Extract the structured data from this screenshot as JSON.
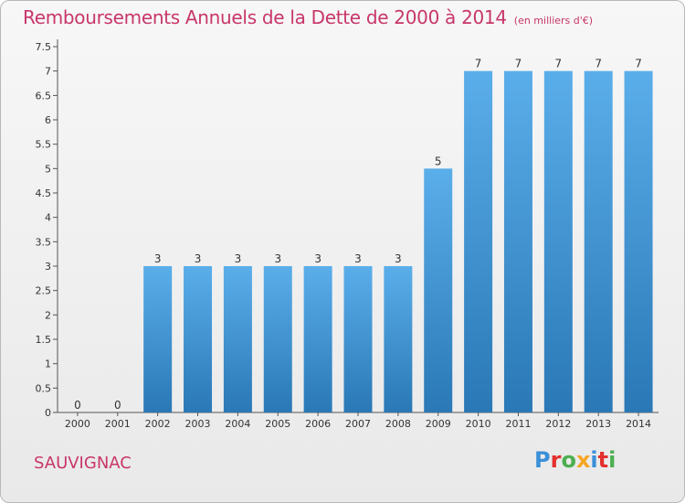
{
  "header": {
    "title": "Remboursements Annuels de la Dette de 2000 à 2014",
    "unit": "(en milliers d'€)"
  },
  "footer": {
    "place": "SAUVIGNAC",
    "logo": "Proxiti"
  },
  "colors": {
    "title": "#c8366a",
    "bar_light": "#5aaeea",
    "bar_dark": "#2a78b6",
    "logo_letters": [
      "#3a8fd8",
      "#e3302f",
      "#4caf50",
      "#f5a623",
      "#3a8fd8",
      "#e3302f",
      "#4caf50"
    ]
  },
  "chart_data": {
    "type": "bar",
    "categories": [
      "2000",
      "2001",
      "2002",
      "2003",
      "2004",
      "2005",
      "2006",
      "2007",
      "2008",
      "2009",
      "2010",
      "2011",
      "2012",
      "2013",
      "2014"
    ],
    "values": [
      0,
      0,
      3,
      3,
      3,
      3,
      3,
      3,
      3,
      5,
      7,
      7,
      7,
      7,
      7
    ],
    "data_labels": [
      "0",
      "0",
      "3",
      "3",
      "3",
      "3",
      "3",
      "3",
      "3",
      "5",
      "7",
      "7",
      "7",
      "7",
      "7"
    ],
    "yticks": [
      "0",
      "0.5",
      "1",
      "1.5",
      "2",
      "2.5",
      "3",
      "3.5",
      "4",
      "4.5",
      "5",
      "5.5",
      "6",
      "6.5",
      "7",
      "7.5"
    ],
    "ylim": [
      0,
      7.5
    ],
    "grid": false,
    "xlabel": "",
    "ylabel": ""
  }
}
